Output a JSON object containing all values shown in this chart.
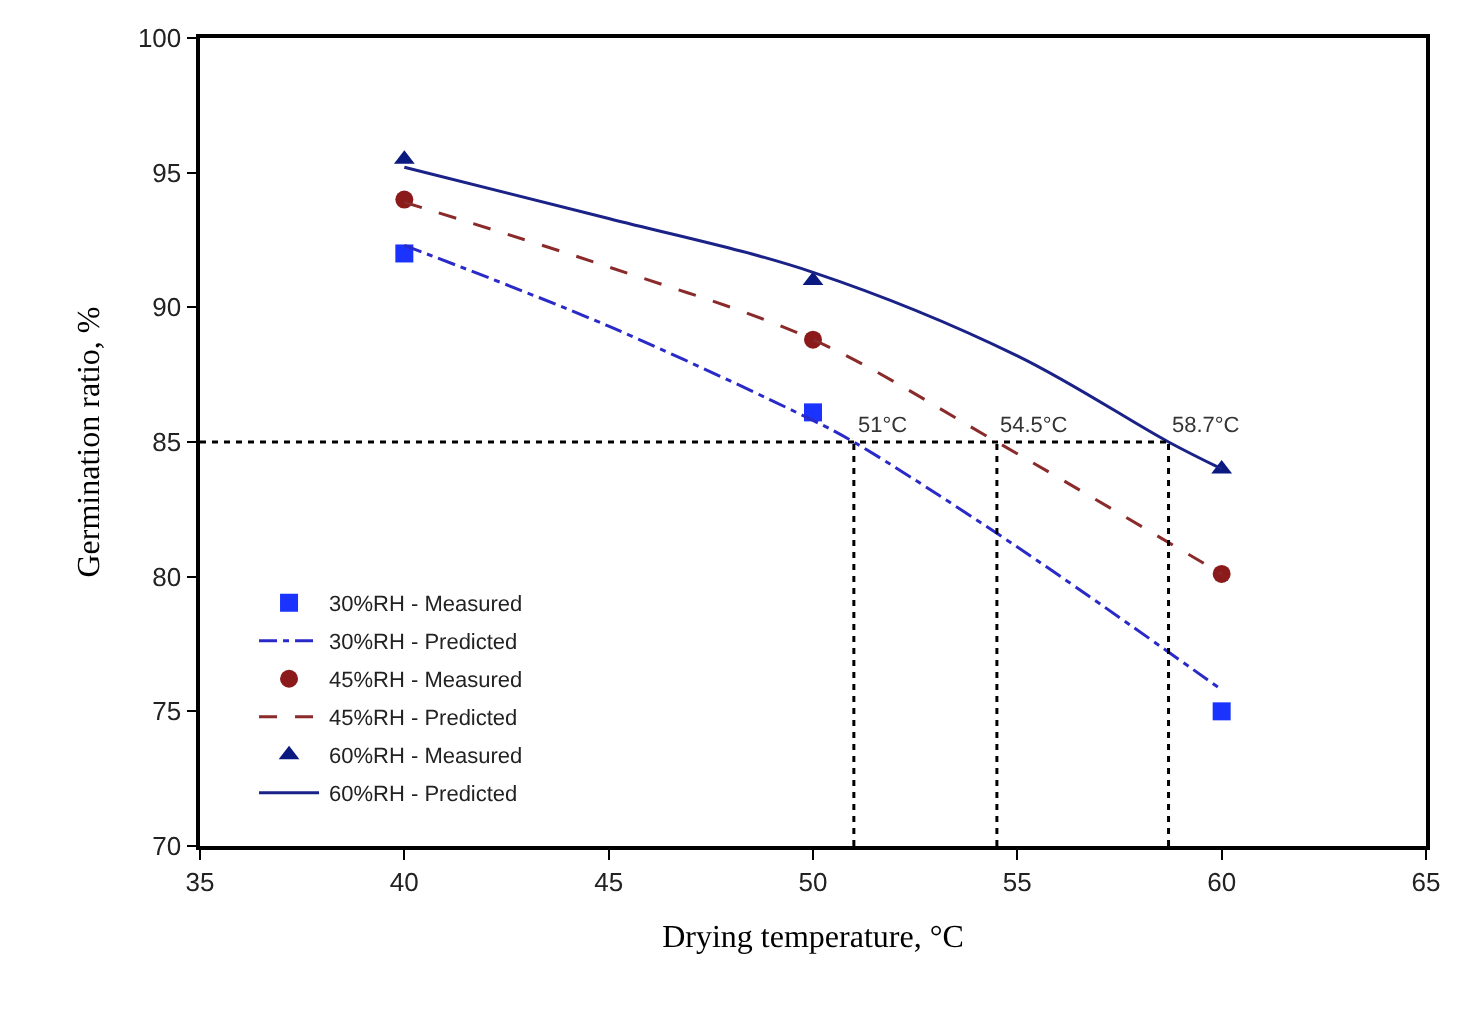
{
  "chart_data": {
    "type": "scatter",
    "xlabel": "Drying temperature, °C",
    "ylabel": "Germination ratio, %",
    "xlim": [
      35,
      65
    ],
    "xticks": [
      35,
      40,
      45,
      50,
      55,
      60,
      65
    ],
    "ylim": [
      70,
      100
    ],
    "yticks": [
      70,
      75,
      80,
      85,
      90,
      95,
      100
    ],
    "legend": "bottom left",
    "series": [
      {
        "name": "30%RH - Measured",
        "marker": "square",
        "color": "#1a33ff",
        "x": [
          40,
          50,
          60
        ],
        "values": [
          92.0,
          86.1,
          75.0
        ]
      },
      {
        "name": "30%RH - Predicted",
        "type": "line",
        "marker": "none",
        "line_style": "dashdot",
        "color": "#2a2ac8",
        "x": [
          40,
          45,
          50,
          51,
          55,
          60
        ],
        "values": [
          92.3,
          89.3,
          85.8,
          85.0,
          81.1,
          75.8
        ]
      },
      {
        "name": "45%RH - Measured",
        "marker": "circle",
        "color": "#8b1a1a",
        "x": [
          40,
          50,
          60
        ],
        "values": [
          94.0,
          88.8,
          80.1
        ]
      },
      {
        "name": "45%RH - Predicted",
        "type": "line",
        "marker": "none",
        "line_style": "dashed",
        "color": "#8b2a2a",
        "x": [
          40,
          45,
          50,
          54.5,
          60
        ],
        "values": [
          93.9,
          91.5,
          88.8,
          85.0,
          80.1
        ]
      },
      {
        "name": "60%RH - Measured",
        "marker": "triangle",
        "color": "#0a1a80",
        "x": [
          40,
          50,
          60
        ],
        "values": [
          95.5,
          91.0,
          84.0
        ]
      },
      {
        "name": "60%RH - Predicted",
        "type": "line",
        "marker": "none",
        "line_style": "solid",
        "color": "#1a2288",
        "x": [
          40,
          45,
          50,
          55,
          58.7,
          60
        ],
        "values": [
          95.2,
          93.3,
          91.3,
          88.2,
          85.0,
          84.0
        ]
      }
    ],
    "ref_lines": [
      {
        "axis": "y",
        "value": 85,
        "label": null,
        "line_style": "dotted",
        "color": "#000000"
      },
      {
        "axis": "x",
        "value": 51,
        "label": "51°C",
        "line_style": "dotted",
        "color": "#000000"
      },
      {
        "axis": "x",
        "value": 54.5,
        "label": "54.5°C",
        "line_style": "dotted",
        "color": "#000000"
      },
      {
        "axis": "x",
        "value": 58.7,
        "label": "58.7°C",
        "line_style": "dotted",
        "color": "#000000"
      }
    ]
  }
}
